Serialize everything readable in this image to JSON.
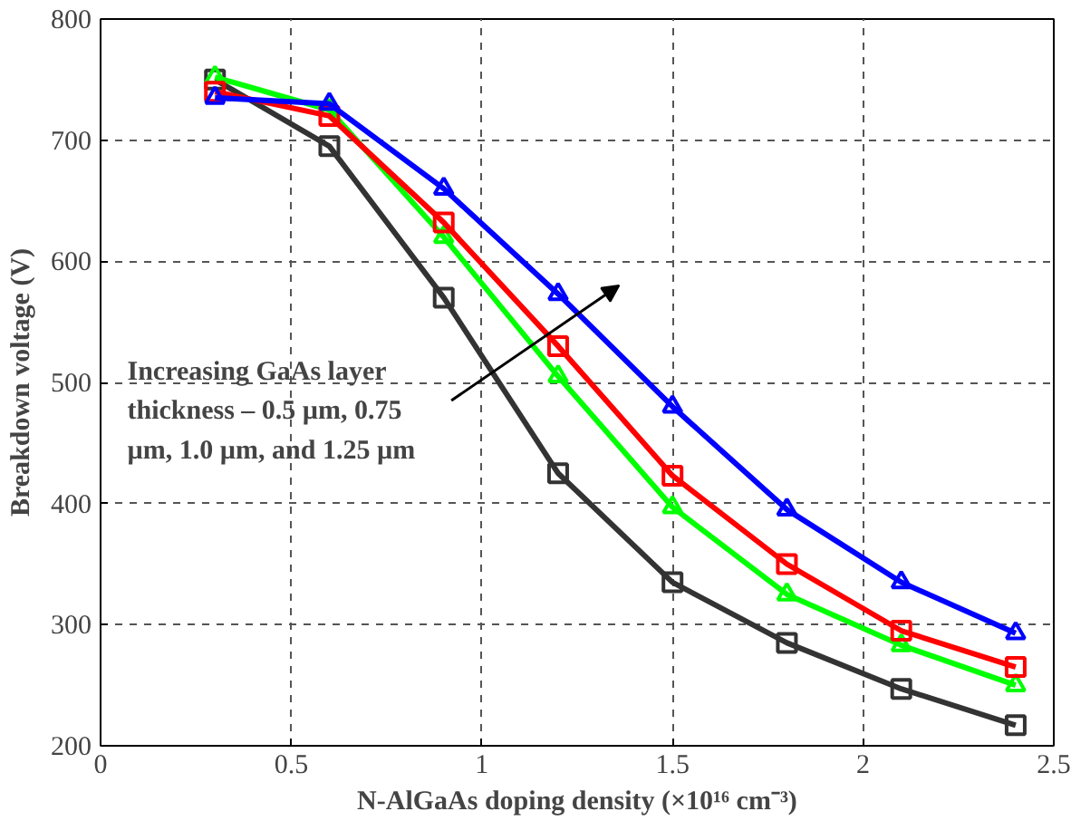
{
  "chart_data": {
    "type": "line",
    "xlabel": "N-AlGaAs doping density (×10¹⁶ cm⁻³)",
    "ylabel": "Breakdown voltage (V)",
    "x": [
      0.3,
      0.6,
      0.9,
      1.2,
      1.5,
      1.8,
      2.1,
      2.4
    ],
    "series": [
      {
        "color": "#333333",
        "marker": "square",
        "values": [
          750,
          695,
          570,
          425,
          335,
          285,
          247,
          217
        ]
      },
      {
        "color": "#00ff00",
        "marker": "triangle",
        "values": [
          752,
          725,
          620,
          505,
          397,
          325,
          283,
          250
        ]
      },
      {
        "color": "#ff0000",
        "marker": "square",
        "values": [
          740,
          720,
          632,
          530,
          423,
          350,
          295,
          265
        ]
      },
      {
        "color": "#0000ff",
        "marker": "triangle",
        "values": [
          735,
          730,
          660,
          573,
          480,
          395,
          335,
          293
        ]
      }
    ],
    "xlim": [
      0,
      2.5
    ],
    "xticks": [
      0,
      0.5,
      1,
      1.5,
      2,
      2.5
    ],
    "ylim": [
      200,
      800
    ],
    "yticks": [
      200,
      300,
      400,
      500,
      600,
      700,
      800
    ],
    "grid": true,
    "line_style": "solid",
    "annotations": [
      "Increasing GaAs layer thickness – 0.5 µm, 0.75 µm, 1.0 µm, and 1.25 µm"
    ]
  }
}
